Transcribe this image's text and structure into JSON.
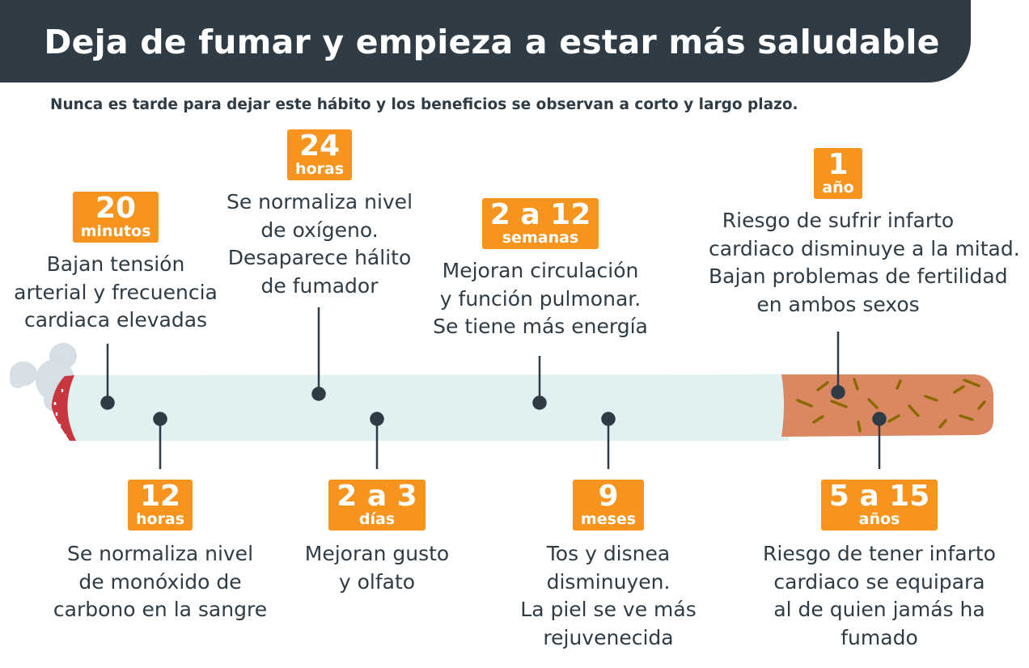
{
  "header": {
    "title": "Deja de fumar y empieza a estar más saludable",
    "subtitle": "Nunca es tarde para dejar este hábito y los beneficios se observan a corto y largo plazo."
  },
  "colors": {
    "header": "#2f3c46",
    "badge": "#f7941d",
    "cigarette_body": "#dff2f1",
    "filter": "#db8862",
    "ember": "#c8373f",
    "smoke": "#d5dfe5"
  },
  "milestones": [
    {
      "num": "20",
      "unit": "minutos",
      "lines": [
        "Bajan tensión",
        "arterial y frecuencia",
        "cardiaca elevadas"
      ]
    },
    {
      "num": "24",
      "unit": "horas",
      "lines": [
        "Se normaliza nivel",
        "de oxígeno.",
        "Desaparece hálito",
        "de fumador"
      ]
    },
    {
      "num": "2 a 12",
      "unit": "semanas",
      "lines": [
        "Mejoran circulación",
        "y función pulmonar.",
        "Se tiene más energía"
      ]
    },
    {
      "num": "1",
      "unit": "año",
      "lines": [
        "Riesgo de sufrir infarto",
        "cardiaco disminuye a la mitad.",
        "Bajan problemas de fertilidad",
        "en ambos sexos"
      ]
    },
    {
      "num": "12",
      "unit": "horas",
      "lines": [
        "Se normaliza nivel",
        "de monóxido de",
        "carbono en la sangre"
      ]
    },
    {
      "num": "2 a 3",
      "unit": "días",
      "lines": [
        "Mejoran gusto",
        "y olfato"
      ]
    },
    {
      "num": "9",
      "unit": "meses",
      "lines": [
        "Tos y disnea",
        "disminuyen.",
        "La piel se ve más",
        "rejuvenecida"
      ]
    },
    {
      "num": "5 a 15",
      "unit": "años",
      "lines": [
        "Riesgo de tener infarto",
        "cardiaco se equipara",
        "al de quien jamás ha",
        "fumado"
      ]
    }
  ]
}
